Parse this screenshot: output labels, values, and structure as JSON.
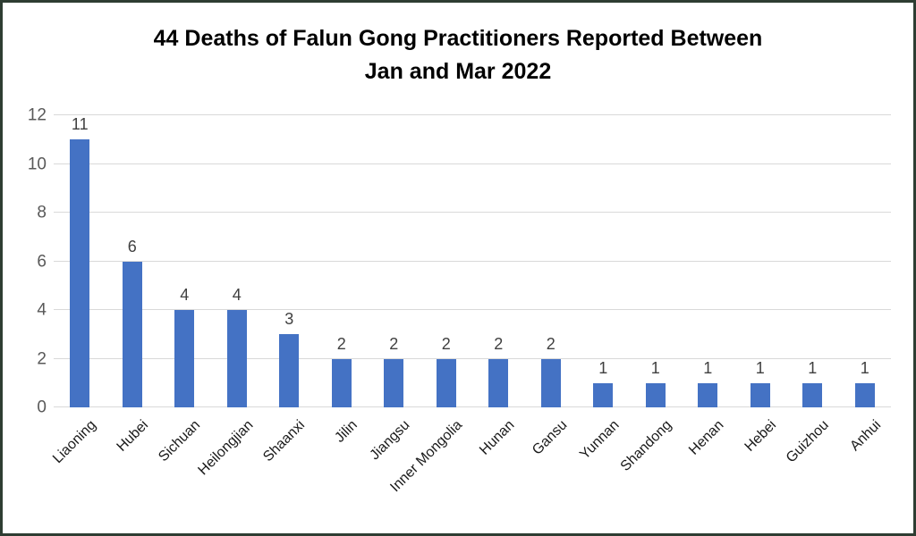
{
  "page": {
    "background_color": "#ffffff",
    "border_color": "#2e3d32"
  },
  "chart_data": {
    "type": "bar",
    "title": "44 Deaths of Falun Gong Practitioners Reported Between Jan and Mar 2022",
    "title_lines": [
      "44 Deaths of Falun Gong Practitioners Reported Between",
      "Jan and Mar 2022"
    ],
    "categories": [
      "Liaoning",
      "Hubei",
      "Sichuan",
      "Heilongjian",
      "Shaanxi",
      "Jilin",
      "Jiangsu",
      "Inner Mongolia",
      "Hunan",
      "Gansu",
      "Yunnan",
      "Shandong",
      "Henan",
      "Hebei",
      "Guizhou",
      "Anhui"
    ],
    "values": [
      11,
      6,
      4,
      4,
      3,
      2,
      2,
      2,
      2,
      2,
      1,
      1,
      1,
      1,
      1,
      1
    ],
    "data_labels": [
      11,
      6,
      4,
      4,
      3,
      2,
      2,
      2,
      2,
      2,
      1,
      1,
      1,
      1,
      1,
      1
    ],
    "xlabel": "",
    "ylabel": "",
    "ylim": [
      0,
      12
    ],
    "yticks": [
      0,
      2,
      4,
      6,
      8,
      10,
      12
    ],
    "grid": true,
    "legend": "none",
    "x_label_rotation_deg": -45,
    "bar_color": "#4472c4",
    "gridline_color": "#d9d9d9",
    "y_tick_color": "#595959",
    "data_label_color": "#404040",
    "x_label_color": "#1a1a1a",
    "title_color": "#000000"
  }
}
